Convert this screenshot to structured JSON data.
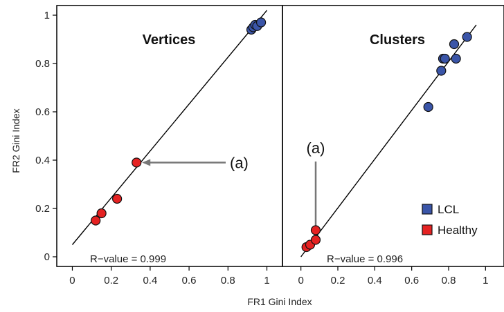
{
  "chart_data": {
    "type": "scatter",
    "xlabel": "FR1 Gini Index",
    "ylabel": "FR2 Gini Index",
    "legend": {
      "placement": "bottom-right",
      "entries": [
        {
          "name": "LCL",
          "color": "#3a55a8"
        },
        {
          "name": "Healthy",
          "color": "#e52222"
        }
      ]
    },
    "panels": [
      {
        "title": "Vertices",
        "xlim": [
          -0.08,
          1.08
        ],
        "ylim": [
          -0.04,
          1.04
        ],
        "x_ticks": [
          "0",
          "0.2",
          "0.4",
          "0.6",
          "0.8",
          "1"
        ],
        "y_ticks": [
          "0",
          "0.2",
          "0.4",
          "0.6",
          "0.8",
          "1"
        ],
        "r_value_label": "R−value = 0.999",
        "fit_line": {
          "x": [
            0.0,
            1.0
          ],
          "y": [
            0.05,
            1.02
          ]
        },
        "annotation": {
          "text": "(a)",
          "point": [
            0.33,
            0.39
          ]
        },
        "series": [
          {
            "name": "LCL",
            "x": [
              0.92,
              0.93,
              0.94,
              0.95,
              0.97
            ],
            "y": [
              0.94,
              0.95,
              0.96,
              0.955,
              0.97
            ]
          },
          {
            "name": "Healthy",
            "x": [
              0.12,
              0.15,
              0.23,
              0.33
            ],
            "y": [
              0.15,
              0.18,
              0.24,
              0.39
            ]
          }
        ]
      },
      {
        "title": "Clusters",
        "xlim": [
          -0.1,
          1.1
        ],
        "ylim": [
          -0.04,
          1.04
        ],
        "x_ticks": [
          "0",
          "0.2",
          "0.4",
          "0.6",
          "0.8",
          "1"
        ],
        "r_value_label": "R−value = 0.996",
        "fit_line": {
          "x": [
            0.0,
            0.95
          ],
          "y": [
            0.0,
            0.96
          ]
        },
        "annotation": {
          "text": "(a)",
          "point": [
            0.08,
            0.1
          ]
        },
        "series": [
          {
            "name": "LCL",
            "x": [
              0.69,
              0.76,
              0.77,
              0.78,
              0.83,
              0.84,
              0.9
            ],
            "y": [
              0.62,
              0.77,
              0.82,
              0.82,
              0.88,
              0.82,
              0.91
            ]
          },
          {
            "name": "Healthy",
            "x": [
              0.03,
              0.05,
              0.08,
              0.08
            ],
            "y": [
              0.04,
              0.05,
              0.07,
              0.11
            ]
          }
        ]
      }
    ]
  }
}
